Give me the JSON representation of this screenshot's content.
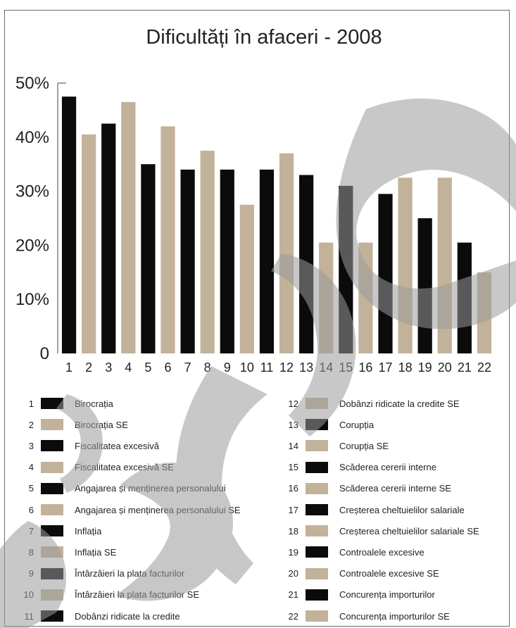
{
  "chart_data": {
    "type": "bar",
    "title": "Dificultăți în afaceri - 2008",
    "categories": [
      "1",
      "2",
      "3",
      "4",
      "5",
      "6",
      "7",
      "8",
      "9",
      "10",
      "11",
      "12",
      "13",
      "14",
      "15",
      "16",
      "17",
      "18",
      "19",
      "20",
      "21",
      "22"
    ],
    "values": [
      47.5,
      40.5,
      42.5,
      46.5,
      35,
      42,
      34,
      37.5,
      34,
      27.5,
      34,
      37,
      33,
      20.5,
      31,
      20.5,
      29.5,
      32.5,
      25,
      32.5,
      20.5,
      15
    ],
    "bar_colors": [
      "#0b0b0b",
      "#c2b29a",
      "#0b0b0b",
      "#c2b29a",
      "#0b0b0b",
      "#c2b29a",
      "#0b0b0b",
      "#c2b29a",
      "#0b0b0b",
      "#c2b29a",
      "#0b0b0b",
      "#c2b29a",
      "#0b0b0b",
      "#c2b29a",
      "#0b0b0b",
      "#c2b29a",
      "#0b0b0b",
      "#c2b29a",
      "#0b0b0b",
      "#c2b29a",
      "#0b0b0b",
      "#c2b29a"
    ],
    "ylim": [
      0,
      50
    ],
    "yticks": [
      "0",
      "10%",
      "20%",
      "30%",
      "40%",
      "50%"
    ],
    "ytick_values": [
      0,
      10,
      20,
      30,
      40,
      50
    ],
    "grid": false,
    "legend_placement": "bottom"
  },
  "legend": [
    {
      "num": "1",
      "label": "Birocrația",
      "color": "#0b0b0b"
    },
    {
      "num": "2",
      "label": "Birocrația SE",
      "color": "#c2b29a"
    },
    {
      "num": "3",
      "label": "Fiscalitatea excesivă",
      "color": "#0b0b0b"
    },
    {
      "num": "4",
      "label": "Fiscalitatea excesivă SE",
      "color": "#c2b29a"
    },
    {
      "num": "5",
      "label": "Angajarea și menținerea personalului",
      "color": "#0b0b0b"
    },
    {
      "num": "6",
      "label": "Angajarea și menținerea personalului SE",
      "color": "#c2b29a"
    },
    {
      "num": "7",
      "label": "Inflația",
      "color": "#0b0b0b"
    },
    {
      "num": "8",
      "label": "Inflația SE",
      "color": "#c2b29a"
    },
    {
      "num": "9",
      "label": "Întârzâieri la plata facturilor",
      "color": "#0b0b0b"
    },
    {
      "num": "10",
      "label": "Întârzâieri la plata facturilor SE",
      "color": "#c2b29a"
    },
    {
      "num": "11",
      "label": "Dobânzi ridicate la credite",
      "color": "#0b0b0b"
    },
    {
      "num": "12",
      "label": "Dobânzi ridicate la credite SE",
      "color": "#c2b29a"
    },
    {
      "num": "13",
      "label": "Corupția",
      "color": "#0b0b0b"
    },
    {
      "num": "14",
      "label": "Corupția SE",
      "color": "#c2b29a"
    },
    {
      "num": "15",
      "label": "Scăderea cererii interne",
      "color": "#0b0b0b"
    },
    {
      "num": "16",
      "label": "Scăderea cererii interne SE",
      "color": "#c2b29a"
    },
    {
      "num": "17",
      "label": "Creșterea cheltuielilor salariale",
      "color": "#0b0b0b"
    },
    {
      "num": "18",
      "label": "Creșterea cheltuielilor salariale SE",
      "color": "#c2b29a"
    },
    {
      "num": "19",
      "label": "Controalele excesive",
      "color": "#0b0b0b"
    },
    {
      "num": "20",
      "label": "Controalele excesive SE",
      "color": "#c2b29a"
    },
    {
      "num": "21",
      "label": "Concurența importurilor",
      "color": "#0b0b0b"
    },
    {
      "num": "22",
      "label": "Concurența importurilor SE",
      "color": "#c2b29a"
    }
  ],
  "watermark": {
    "color": "#9a9a9a",
    "opacity": 0.55
  }
}
